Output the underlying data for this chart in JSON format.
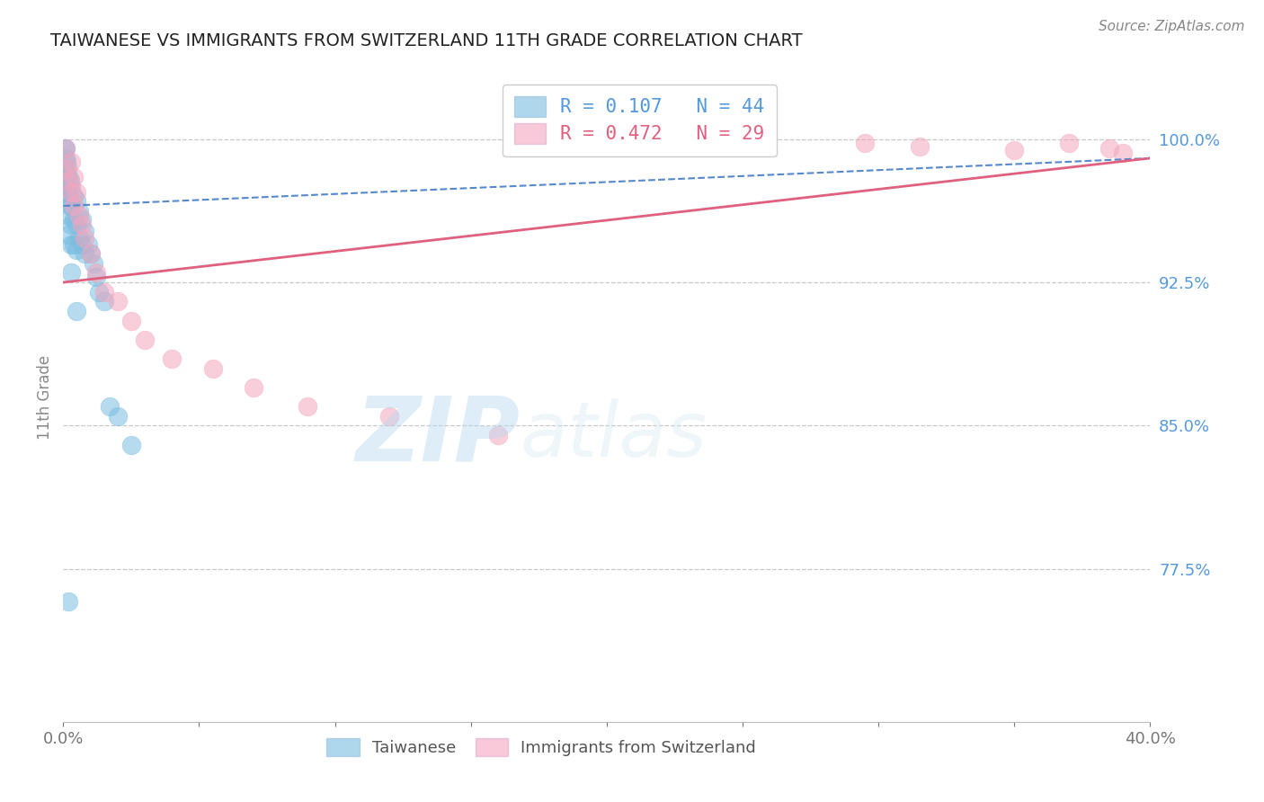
{
  "title": "TAIWANESE VS IMMIGRANTS FROM SWITZERLAND 11TH GRADE CORRELATION CHART",
  "source": "Source: ZipAtlas.com",
  "ylabel": "11th Grade",
  "ytick_labels": [
    "100.0%",
    "92.5%",
    "85.0%",
    "77.5%"
  ],
  "ytick_values": [
    1.0,
    0.925,
    0.85,
    0.775
  ],
  "xmin": 0.0,
  "xmax": 0.4,
  "ymin": 0.695,
  "ymax": 1.035,
  "watermark_zip": "ZIP",
  "watermark_atlas": "atlas",
  "legend_r1": "R = 0.107",
  "legend_n1": "N = 44",
  "legend_r2": "R = 0.472",
  "legend_n2": "N = 29",
  "blue_color": "#7bbde0",
  "pink_color": "#f4a6be",
  "blue_trend_color": "#5588cc",
  "pink_trend_color": "#e06080",
  "tw_x": [
    0.0005,
    0.0005,
    0.0008,
    0.001,
    0.001,
    0.001,
    0.0012,
    0.0012,
    0.0015,
    0.0015,
    0.002,
    0.002,
    0.002,
    0.002,
    0.0025,
    0.0025,
    0.003,
    0.003,
    0.003,
    0.003,
    0.004,
    0.004,
    0.004,
    0.005,
    0.005,
    0.005,
    0.006,
    0.006,
    0.007,
    0.007,
    0.008,
    0.008,
    0.009,
    0.01,
    0.011,
    0.012,
    0.013,
    0.015,
    0.017,
    0.02,
    0.025,
    0.005,
    0.003,
    0.002
  ],
  "tw_y": [
    0.995,
    0.985,
    0.99,
    0.995,
    0.982,
    0.972,
    0.988,
    0.975,
    0.985,
    0.97,
    0.98,
    0.972,
    0.96,
    0.95,
    0.978,
    0.965,
    0.975,
    0.965,
    0.955,
    0.945,
    0.97,
    0.958,
    0.945,
    0.968,
    0.955,
    0.942,
    0.962,
    0.948,
    0.958,
    0.945,
    0.952,
    0.94,
    0.945,
    0.94,
    0.935,
    0.928,
    0.92,
    0.915,
    0.86,
    0.855,
    0.84,
    0.91,
    0.93,
    0.758
  ],
  "sw_x": [
    0.001,
    0.001,
    0.002,
    0.003,
    0.003,
    0.004,
    0.004,
    0.005,
    0.006,
    0.007,
    0.008,
    0.01,
    0.012,
    0.015,
    0.02,
    0.025,
    0.03,
    0.04,
    0.055,
    0.07,
    0.09,
    0.12,
    0.16,
    0.295,
    0.315,
    0.35,
    0.37,
    0.385,
    0.39
  ],
  "sw_y": [
    0.995,
    0.985,
    0.978,
    0.988,
    0.972,
    0.98,
    0.965,
    0.972,
    0.96,
    0.955,
    0.948,
    0.94,
    0.93,
    0.92,
    0.915,
    0.905,
    0.895,
    0.885,
    0.88,
    0.87,
    0.86,
    0.855,
    0.845,
    0.998,
    0.996,
    0.994,
    0.998,
    0.995,
    0.993
  ]
}
